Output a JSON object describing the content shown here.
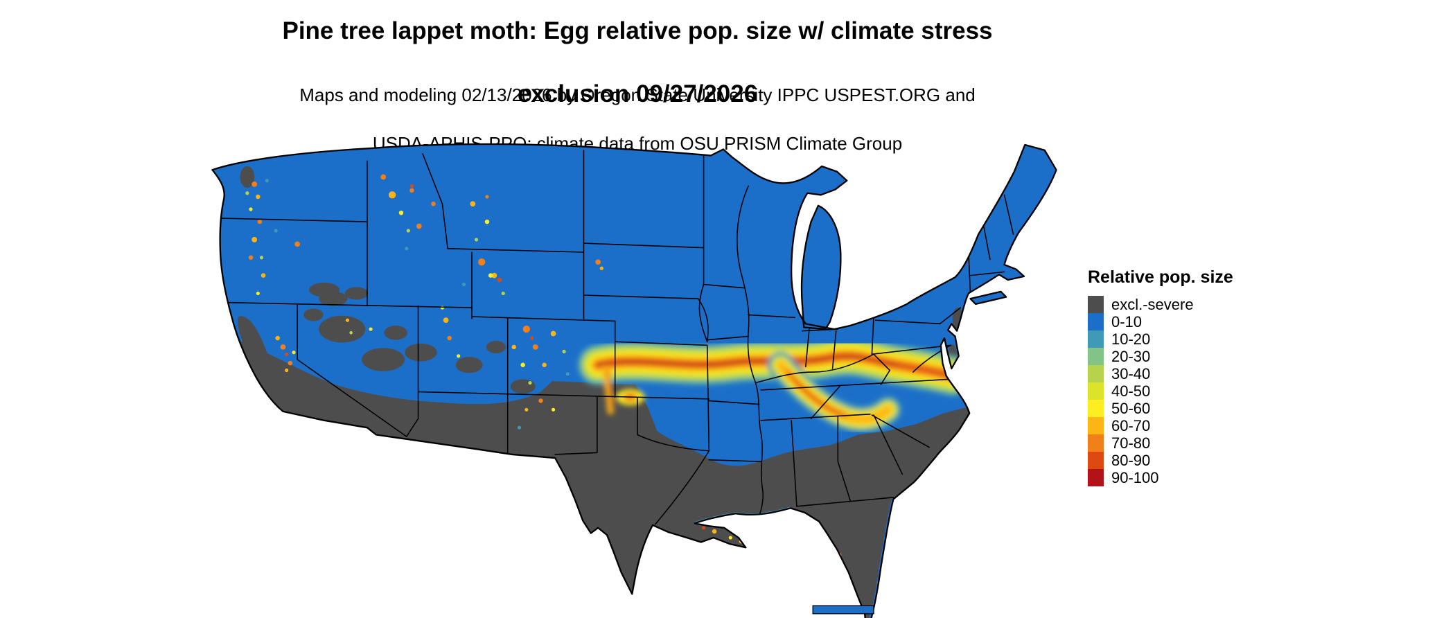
{
  "title": {
    "line1": "Pine tree lappet moth: Egg relative pop. size w/ climate stress",
    "line2": "exclusion 09/27/2026"
  },
  "subtitle": {
    "line1": "Maps and modeling 02/13/2026 by Oregon State University IPPC USPEST.ORG and",
    "line2": "USDA-APHIS-PPQ; climate data from OSU PRISM Climate Group"
  },
  "legend": {
    "title": "Relative pop. size",
    "items": [
      {
        "label": "excl.-severe",
        "color": "#4d4d4d"
      },
      {
        "label": "0-10",
        "color": "#1c6fc8"
      },
      {
        "label": "10-20",
        "color": "#3f9ab5"
      },
      {
        "label": "20-30",
        "color": "#82c487"
      },
      {
        "label": "30-40",
        "color": "#b7d34b"
      },
      {
        "label": "40-50",
        "color": "#dde32b"
      },
      {
        "label": "50-60",
        "color": "#fcee21"
      },
      {
        "label": "60-70",
        "color": "#fdb515"
      },
      {
        "label": "70-80",
        "color": "#f18019"
      },
      {
        "label": "80-90",
        "color": "#dc4a12"
      },
      {
        "label": "90-100",
        "color": "#b31218"
      }
    ]
  },
  "chart_data": {
    "type": "choropleth",
    "region": "Contiguous United States",
    "variable": "Egg relative population size with climate stress exclusion",
    "classes": [
      "excl.-severe",
      "0-10",
      "10-20",
      "20-30",
      "30-40",
      "40-50",
      "50-60",
      "60-70",
      "70-80",
      "80-90",
      "90-100"
    ],
    "class_colors": [
      "#4d4d4d",
      "#1c6fc8",
      "#3f9ab5",
      "#82c487",
      "#b7d34b",
      "#dde32b",
      "#fcee21",
      "#fdb515",
      "#f18019",
      "#dc4a12",
      "#b31218"
    ],
    "legend_position": "right"
  }
}
